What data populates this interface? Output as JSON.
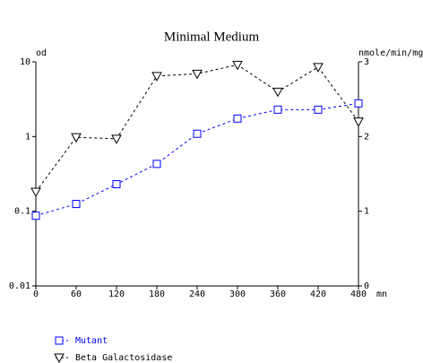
{
  "chart_data": {
    "type": "line",
    "title": "Minimal Medium",
    "ylabel": "od",
    "y2label": "nmole/min/mg",
    "xlabel": "mn",
    "x": [
      0,
      60,
      120,
      180,
      240,
      300,
      360,
      420,
      480
    ],
    "xlim": [
      0,
      480
    ],
    "xticks": [
      0,
      60,
      120,
      180,
      240,
      300,
      360,
      420,
      480
    ],
    "ylim": [
      0.01,
      10
    ],
    "yticks": [
      0.01,
      0.1,
      1,
      10
    ],
    "yscale": "log",
    "y2lim": [
      0,
      3
    ],
    "y2ticks": [
      0,
      1,
      2,
      3
    ],
    "legend": "bottom-left",
    "series": [
      {
        "name": "Mutant",
        "color": "#0000ff",
        "marker": "square",
        "axis": "y",
        "values": [
          0.087,
          0.125,
          0.23,
          0.43,
          1.09,
          1.74,
          2.29,
          2.29,
          2.78
        ]
      },
      {
        "name": "Beta Galactosidase",
        "color": "#000000",
        "marker": "triangle-down",
        "axis": "y2",
        "values": [
          1.26,
          1.99,
          1.97,
          2.81,
          2.84,
          2.96,
          2.6,
          2.93,
          2.2
        ]
      }
    ]
  }
}
